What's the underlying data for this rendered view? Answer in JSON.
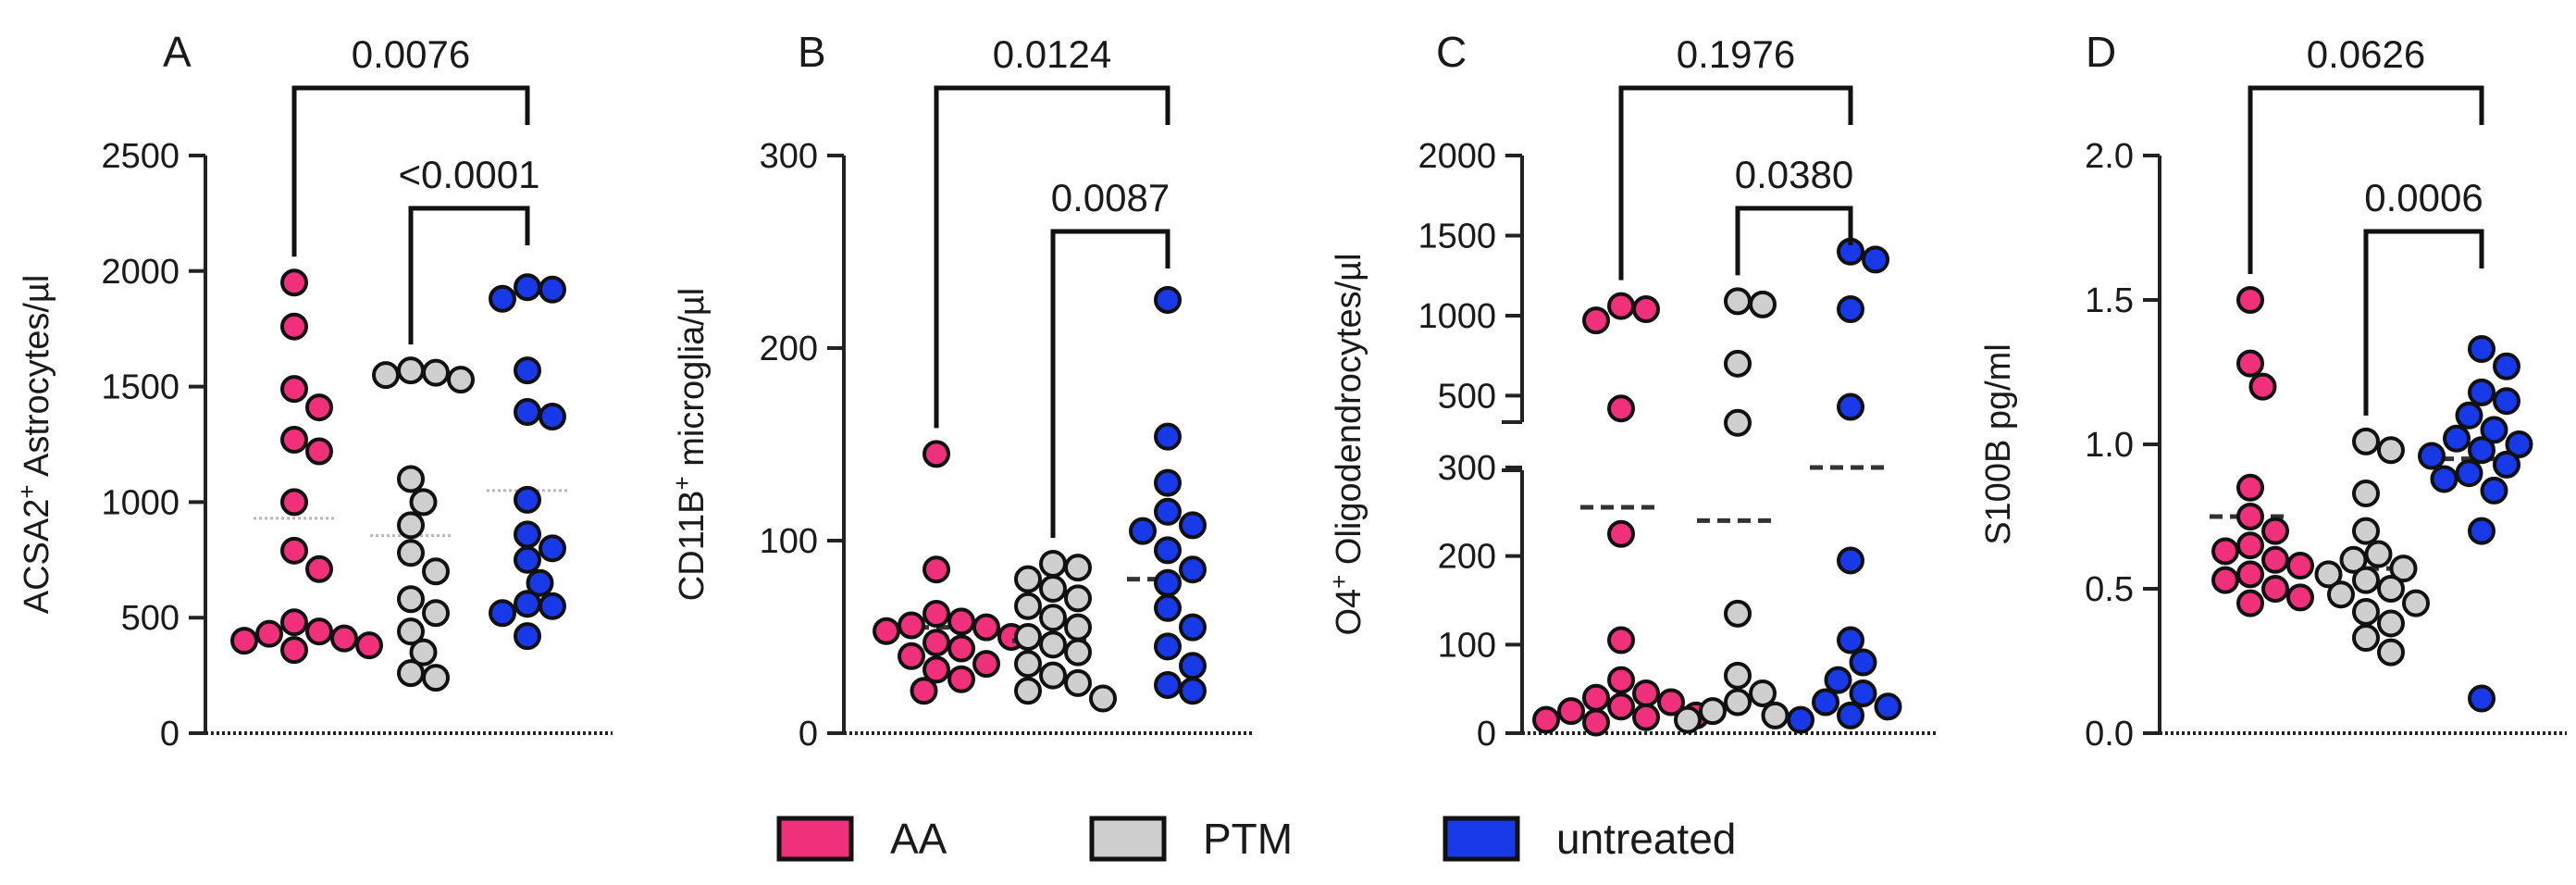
{
  "colors": {
    "AA": "#f0307a",
    "PTM": "#cfcfcf",
    "untreated": "#1739e8"
  },
  "legend": [
    {
      "key": "AA",
      "label": "AA"
    },
    {
      "key": "PTM",
      "label": "PTM"
    },
    {
      "key": "untreated",
      "label": "untreated"
    }
  ],
  "chart_data": [
    {
      "type": "scatter",
      "panel": "A",
      "ylabel_main": "ACSA2",
      "ylabel_sup": "+",
      "ylabel_rest": " Astrocytes/µl",
      "ylim": [
        0,
        2500
      ],
      "yticks": [
        0,
        500,
        1000,
        1500,
        2000,
        2500
      ],
      "ytick_labels": [
        "0",
        "500",
        "1000",
        "1500",
        "2000",
        "2500"
      ],
      "groups": [
        {
          "key": "AA",
          "mean": 930,
          "values": [
            1950,
            1760,
            1490,
            1410,
            1270,
            1220,
            1000,
            790,
            710,
            480,
            440,
            430,
            410,
            400,
            380,
            360
          ]
        },
        {
          "key": "PTM",
          "mean": 855,
          "values": [
            1570,
            1560,
            1550,
            1530,
            1100,
            1000,
            900,
            780,
            700,
            580,
            520,
            440,
            350,
            260,
            240
          ]
        },
        {
          "key": "untreated",
          "mean": 1050,
          "values": [
            1930,
            1920,
            1880,
            1570,
            1390,
            1370,
            1010,
            860,
            800,
            750,
            650,
            560,
            550,
            520,
            420
          ]
        }
      ],
      "brackets": [
        {
          "from": 0,
          "to": 2,
          "label": "0.0076"
        },
        {
          "from": 1,
          "to": 2,
          "label": "<0.0001"
        }
      ]
    },
    {
      "type": "scatter",
      "panel": "B",
      "ylabel_main": "CD11B",
      "ylabel_sup": "+",
      "ylabel_rest": " microglia/µl",
      "ylim": [
        0,
        300
      ],
      "yticks": [
        0,
        100,
        200,
        300
      ],
      "ytick_labels": [
        "0",
        "100",
        "200",
        "300"
      ],
      "groups": [
        {
          "key": "AA",
          "mean": 55,
          "values": [
            145,
            85,
            62,
            58,
            56,
            55,
            53,
            50,
            47,
            44,
            40,
            36,
            33,
            28,
            22
          ]
        },
        {
          "key": "PTM",
          "mean": 48,
          "values": [
            88,
            86,
            80,
            75,
            70,
            66,
            60,
            55,
            50,
            46,
            42,
            36,
            30,
            26,
            22,
            18
          ]
        },
        {
          "key": "untreated",
          "mean": 80,
          "values": [
            225,
            154,
            130,
            115,
            108,
            105,
            95,
            85,
            78,
            65,
            55,
            45,
            35,
            25,
            22
          ]
        }
      ],
      "brackets": [
        {
          "from": 0,
          "to": 2,
          "label": "0.0124"
        },
        {
          "from": 1,
          "to": 2,
          "label": "0.0087"
        }
      ]
    },
    {
      "type": "scatter",
      "panel": "C",
      "ylabel_main": "O4",
      "ylabel_sup": "+",
      "ylabel_rest": " Oligodendrocytes/µl",
      "axis_break": true,
      "lower_range": [
        0,
        300
      ],
      "upper_range": [
        300,
        2000
      ],
      "yticks": [
        0,
        100,
        200,
        300,
        500,
        1000,
        1500,
        2000
      ],
      "ytick_labels": [
        "0",
        "100",
        "200",
        "300",
        "500",
        "1000",
        "1500",
        "2000"
      ],
      "groups": [
        {
          "key": "AA",
          "mean": 255,
          "values": [
            1060,
            1040,
            970,
            420,
            225,
            105,
            60,
            45,
            40,
            35,
            30,
            25,
            20,
            18,
            15,
            12
          ]
        },
        {
          "key": "PTM",
          "mean": 240,
          "values": [
            1090,
            1070,
            700,
            330,
            135,
            65,
            45,
            35,
            25,
            20,
            15
          ]
        },
        {
          "key": "untreated",
          "mean": 300,
          "values": [
            1400,
            1350,
            1040,
            430,
            195,
            105,
            80,
            60,
            45,
            35,
            30,
            20,
            15
          ]
        }
      ],
      "brackets": [
        {
          "from": 0,
          "to": 2,
          "label": "0.1976"
        },
        {
          "from": 1,
          "to": 2,
          "label": "0.0380"
        }
      ]
    },
    {
      "type": "scatter",
      "panel": "D",
      "ylabel_main": "S100B pg/ml",
      "ylabel_sup": "",
      "ylabel_rest": "",
      "ylim": [
        0,
        2.0
      ],
      "yticks": [
        0,
        0.5,
        1.0,
        1.5,
        2.0
      ],
      "ytick_labels": [
        "0.0",
        "0.5",
        "1.0",
        "1.5",
        "2.0"
      ],
      "groups": [
        {
          "key": "AA",
          "mean": 0.75,
          "values": [
            1.5,
            1.28,
            1.2,
            0.85,
            0.75,
            0.7,
            0.65,
            0.63,
            0.6,
            0.58,
            0.55,
            0.53,
            0.5,
            0.47,
            0.45
          ]
        },
        {
          "key": "PTM",
          "mean": 0.57,
          "values": [
            1.01,
            0.98,
            0.83,
            0.7,
            0.62,
            0.6,
            0.57,
            0.55,
            0.53,
            0.5,
            0.48,
            0.45,
            0.42,
            0.38,
            0.33,
            0.28
          ]
        },
        {
          "key": "untreated",
          "mean": 0.95,
          "values": [
            1.33,
            1.27,
            1.18,
            1.15,
            1.1,
            1.05,
            1.02,
            1.0,
            0.98,
            0.96,
            0.93,
            0.9,
            0.88,
            0.84,
            0.7,
            0.12
          ]
        }
      ],
      "brackets": [
        {
          "from": 0,
          "to": 2,
          "label": "0.0626"
        },
        {
          "from": 1,
          "to": 2,
          "label": "0.0006"
        }
      ]
    }
  ]
}
